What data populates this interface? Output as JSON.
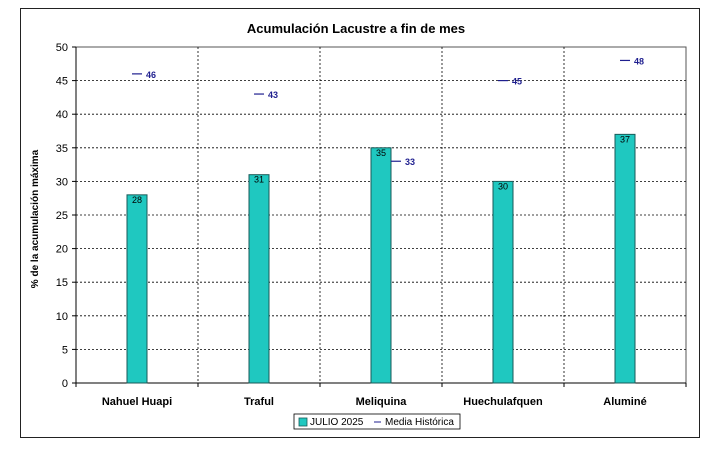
{
  "chart_data": {
    "type": "bar",
    "title": "Acumulación Lacustre a fin de mes",
    "ylabel": "% de la acumulación máxima",
    "xlabel": "",
    "ylim": [
      0,
      50
    ],
    "yticks": [
      0,
      5,
      10,
      15,
      20,
      25,
      30,
      35,
      40,
      45,
      50
    ],
    "categories": [
      "Nahuel Huapi",
      "Traful",
      "Meliquina",
      "Huechulafquen",
      "Aluminé"
    ],
    "series": [
      {
        "name": "JULIO 2025",
        "kind": "bar",
        "values": [
          28,
          31,
          35,
          30,
          37
        ],
        "labels": [
          "28",
          "31",
          "35",
          "30",
          "37"
        ],
        "color": "#1fc8c0"
      },
      {
        "name": "Media Histórica",
        "kind": "marker",
        "values": [
          46,
          43,
          33,
          45,
          48
        ],
        "labels": [
          "46",
          "43",
          "33",
          "45",
          "48"
        ],
        "color": "#1f1f8f"
      }
    ],
    "grid": true,
    "legend_position": "bottom"
  }
}
